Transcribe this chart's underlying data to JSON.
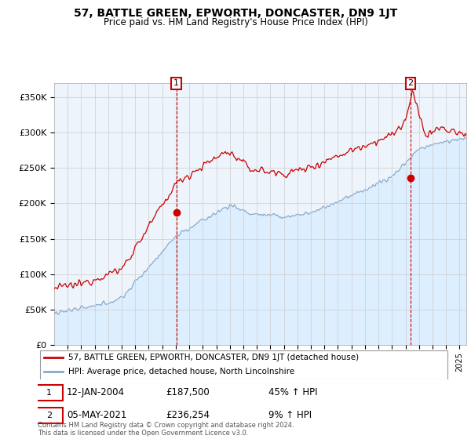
{
  "title": "57, BATTLE GREEN, EPWORTH, DONCASTER, DN9 1JT",
  "subtitle": "Price paid vs. HM Land Registry's House Price Index (HPI)",
  "ylabel_ticks": [
    "£0",
    "£50K",
    "£100K",
    "£150K",
    "£200K",
    "£250K",
    "£300K",
    "£350K"
  ],
  "ytick_vals": [
    0,
    50000,
    100000,
    150000,
    200000,
    250000,
    300000,
    350000
  ],
  "ylim": [
    0,
    370000
  ],
  "xlim_start": 1995.0,
  "xlim_end": 2025.5,
  "red_color": "#cc0000",
  "blue_color": "#88aacc",
  "blue_fill_color": "#ddeeff",
  "marker1_date": 2004.04,
  "marker1_val": 187500,
  "marker2_date": 2021.37,
  "marker2_val": 236254,
  "legend_label1": "57, BATTLE GREEN, EPWORTH, DONCASTER, DN9 1JT (detached house)",
  "legend_label2": "HPI: Average price, detached house, North Lincolnshire",
  "annotation1_date": "12-JAN-2004",
  "annotation1_price": "£187,500",
  "annotation1_hpi": "45% ↑ HPI",
  "annotation2_date": "05-MAY-2021",
  "annotation2_price": "£236,254",
  "annotation2_hpi": "9% ↑ HPI",
  "footer": "Contains HM Land Registry data © Crown copyright and database right 2024.\nThis data is licensed under the Open Government Licence v3.0.",
  "background_color": "#ffffff",
  "grid_color": "#cccccc",
  "chart_bg_color": "#eef4fb"
}
